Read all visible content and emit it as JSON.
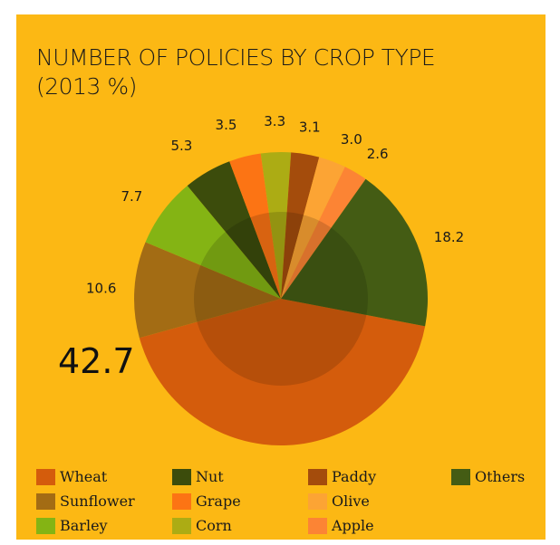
{
  "title": {
    "line1": "NUMBER OF POLICIES BY CROP TYPE",
    "line2": "(2013 %)"
  },
  "chart_data": {
    "type": "pie",
    "title": "NUMBER OF POLICIES BY CROP TYPE (2013 %)",
    "categories": [
      "Wheat",
      "Sunflower",
      "Barley",
      "Nut",
      "Grape",
      "Corn",
      "Paddy",
      "Olive",
      "Apple",
      "Others"
    ],
    "values": [
      42.7,
      10.6,
      7.7,
      5.3,
      3.5,
      3.3,
      3.1,
      3.0,
      2.6,
      18.2
    ],
    "value_labels": [
      "42.7",
      "10.6",
      "7.7",
      "5.3",
      "3.5",
      "3.3",
      "3.1",
      "3.0",
      "2.6",
      "18.2"
    ],
    "colors": [
      "#D45C0C",
      "#A36C14",
      "#84B414",
      "#3C4C0C",
      "#FC7414",
      "#ACAC14",
      "#A44C0C",
      "#FCA434",
      "#FC8434",
      "#445C14"
    ],
    "legend_placement": "bottom",
    "inner_ring_overlay": true
  },
  "legend": [
    {
      "label": "Wheat",
      "color": "#D45C0C"
    },
    {
      "label": "Nut",
      "color": "#3C4C0C"
    },
    {
      "label": "Paddy",
      "color": "#A44C0C"
    },
    {
      "label": "Others",
      "color": "#445C14"
    },
    {
      "label": "Sunflower",
      "color": "#A36C14"
    },
    {
      "label": "Grape",
      "color": "#FC7414"
    },
    {
      "label": "Olive",
      "color": "#FCA434"
    },
    {
      "label": "Barley",
      "color": "#84B414"
    },
    {
      "label": "Corn",
      "color": "#ACAC14"
    },
    {
      "label": "Apple",
      "color": "#FC8434"
    }
  ]
}
